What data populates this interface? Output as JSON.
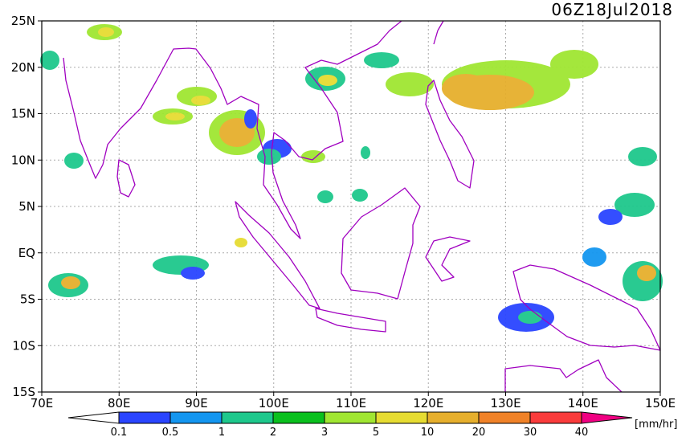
{
  "title": "06Z18Jul2018",
  "lat_labels": [
    "25N",
    "20N",
    "15N",
    "10N",
    "5N",
    "EQ",
    "5S",
    "10S",
    "15S"
  ],
  "lon_labels": [
    "70E",
    "80E",
    "90E",
    "100E",
    "110E",
    "120E",
    "130E",
    "140E",
    "150E"
  ],
  "colorbar": {
    "labels": [
      "0.1",
      "0.5",
      "1",
      "2",
      "3",
      "5",
      "10",
      "20",
      "30",
      "40"
    ],
    "colors": [
      "#ffffff",
      "#2a45ff",
      "#1496f0",
      "#1ec88c",
      "#0ac01e",
      "#a0e632",
      "#e6dc32",
      "#e6af2d",
      "#f08228",
      "#fa3c3c",
      "#f00082"
    ],
    "unit": "[mm/hr]"
  }
}
